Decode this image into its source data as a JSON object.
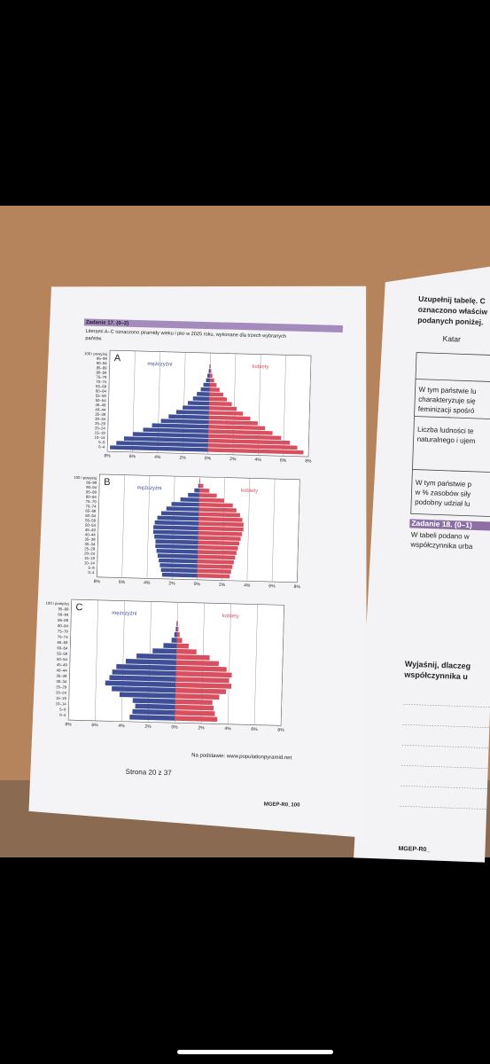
{
  "left_page": {
    "task_title": "Zadanie 17. (0–2)",
    "task_text_1": "Literami A–C oznaczono piramidy wieku i płci w 2025 roku, wykonane dla trzech wybranych",
    "task_text_2": "państw.",
    "source": "Na podstawie: www.populationpyramid.net",
    "page_number": "Strona 20 z 37",
    "code": "MGEP-R0_100"
  },
  "chart_data": [
    {
      "type": "pyramid",
      "label": "A",
      "categories": [
        "100 i powyżej",
        "95–99",
        "90–94",
        "85–89",
        "80–84",
        "75–79",
        "70–74",
        "65–69",
        "60–64",
        "55–59",
        "50–54",
        "45–49",
        "40–44",
        "35–39",
        "30–34",
        "25–29",
        "20–24",
        "15–19",
        "10–14",
        "5–9",
        "0–4"
      ],
      "series": [
        {
          "name": "mężczyźni",
          "color": "#3e4f98",
          "values": [
            0,
            0,
            0.05,
            0.1,
            0.2,
            0.3,
            0.5,
            0.7,
            1.0,
            1.3,
            1.7,
            2.1,
            2.6,
            3.2,
            3.8,
            4.5,
            5.2,
            6.0,
            6.7,
            7.3,
            7.8
          ]
        },
        {
          "name": "kobiety",
          "color": "#d7505f",
          "values": [
            0,
            0,
            0.05,
            0.1,
            0.2,
            0.35,
            0.55,
            0.8,
            1.1,
            1.4,
            1.8,
            2.2,
            2.7,
            3.3,
            3.9,
            4.5,
            5.1,
            5.8,
            6.5,
            7.1,
            7.6
          ]
        }
      ],
      "xlim": [
        -8,
        8
      ],
      "xticks": [
        {
          "value": -8,
          "label": "8%"
        },
        {
          "value": -6,
          "label": "6%"
        },
        {
          "value": -4,
          "label": "4%"
        },
        {
          "value": -2,
          "label": "2%"
        },
        {
          "value": 0,
          "label": "0%"
        },
        {
          "value": 2,
          "label": "2%"
        },
        {
          "value": 4,
          "label": "4%"
        },
        {
          "value": 6,
          "label": "6%"
        },
        {
          "value": 8,
          "label": "8%"
        }
      ]
    },
    {
      "type": "pyramid",
      "label": "B",
      "categories": [
        "100 i powyżej",
        "95–99",
        "90–94",
        "85–89",
        "80–84",
        "75–79",
        "70–74",
        "65–69",
        "60–64",
        "55–59",
        "50–54",
        "45–49",
        "40–44",
        "35–39",
        "30–34",
        "25–29",
        "20–24",
        "15–19",
        "10–14",
        "5–9",
        "0–4"
      ],
      "series": [
        {
          "name": "mężczyźni",
          "color": "#3e4f98",
          "values": [
            0,
            0.1,
            0.4,
            0.9,
            1.5,
            2.2,
            2.6,
            3.0,
            3.3,
            3.5,
            3.6,
            3.6,
            3.5,
            3.4,
            3.4,
            3.3,
            3.2,
            3.1,
            3.0,
            2.9,
            2.8
          ]
        },
        {
          "name": "kobiety",
          "color": "#d7505f",
          "values": [
            0.05,
            0.3,
            0.8,
            1.4,
            2.0,
            2.7,
            3.0,
            3.3,
            3.5,
            3.6,
            3.6,
            3.5,
            3.4,
            3.3,
            3.2,
            3.1,
            3.0,
            2.9,
            2.8,
            2.7,
            2.6
          ]
        }
      ],
      "xlim": [
        -8,
        8
      ],
      "xticks": [
        {
          "value": -8,
          "label": "8%"
        },
        {
          "value": -6,
          "label": "6%"
        },
        {
          "value": -4,
          "label": "4%"
        },
        {
          "value": -2,
          "label": "2%"
        },
        {
          "value": 0,
          "label": "0%"
        },
        {
          "value": 2,
          "label": "2%"
        },
        {
          "value": 4,
          "label": "4%"
        },
        {
          "value": 6,
          "label": "6%"
        },
        {
          "value": 8,
          "label": "8%"
        }
      ]
    },
    {
      "type": "pyramid",
      "label": "C",
      "categories": [
        "100 i powyżej",
        "95–99",
        "90–94",
        "85–89",
        "80–84",
        "75–79",
        "70–74",
        "65–69",
        "60–64",
        "55–59",
        "50–54",
        "45–49",
        "40–44",
        "35–39",
        "30–34",
        "25–29",
        "20–24",
        "15–19",
        "10–14",
        "5–9",
        "0–4"
      ],
      "series": [
        {
          "name": "mężczyźni",
          "color": "#3e4f98",
          "values": [
            0,
            0,
            0,
            0.05,
            0.1,
            0.2,
            0.4,
            1.0,
            1.8,
            3.0,
            3.8,
            4.5,
            4.8,
            5.0,
            5.3,
            4.8,
            4.2,
            3.2,
            3.0,
            3.2,
            3.4
          ]
        },
        {
          "name": "kobiety",
          "color": "#d7505f",
          "values": [
            0,
            0,
            0,
            0.05,
            0.1,
            0.2,
            0.4,
            0.9,
            1.5,
            2.5,
            3.2,
            3.8,
            4.2,
            4.0,
            4.2,
            3.8,
            3.3,
            2.8,
            2.9,
            3.0,
            3.2
          ]
        }
      ],
      "xlim": [
        -8,
        8
      ],
      "xticks": [
        {
          "value": -8,
          "label": "8%"
        },
        {
          "value": -6,
          "label": "6%"
        },
        {
          "value": -4,
          "label": "4%"
        },
        {
          "value": -2,
          "label": "2%"
        },
        {
          "value": 0,
          "label": "0%"
        },
        {
          "value": 2,
          "label": "2%"
        },
        {
          "value": 4,
          "label": "4%"
        },
        {
          "value": 6,
          "label": "6%"
        },
        {
          "value": 8,
          "label": "8%"
        }
      ]
    }
  ],
  "right_page": {
    "heading": [
      "Uzupełnij tabelę. C",
      "oznaczono właściw",
      "podanych poniżej."
    ],
    "column": "Katar",
    "rows": [
      [
        "W tym państwie lu",
        "charakteryzuje się",
        "feminizacji spośró"
      ],
      [
        "Liczba ludności te",
        "naturalnego i ujem"
      ],
      [
        "W tym państwie p",
        "w % zasobów siły",
        "podobny udział lu"
      ]
    ],
    "task_title": "Zadanie 18. (0–1)",
    "task_text": [
      "W tabeli podano w",
      "współczynnika urba"
    ],
    "question": [
      "Wyjaśnij, dlaczeg",
      "współczynnika u"
    ],
    "code": "MGEP-R0_"
  }
}
